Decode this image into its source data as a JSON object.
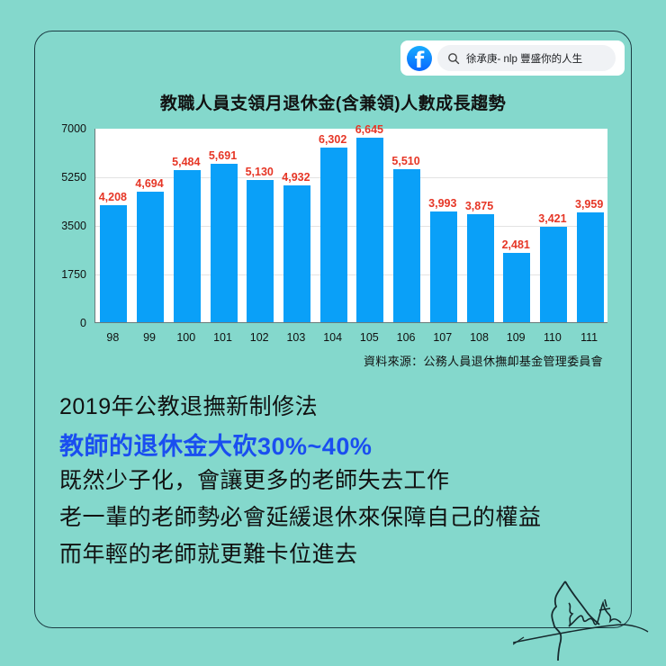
{
  "facebook_bar": {
    "logo_icon": "facebook-logo-icon",
    "search_icon": "search-icon",
    "page_name": "徐承庚- nlp 豐盛你的人生"
  },
  "chart_data": {
    "type": "bar",
    "title": "教職人員支領月退休金(含兼領)人數成長趨勢",
    "xlabel": "",
    "ylabel": "",
    "categories": [
      "98",
      "99",
      "100",
      "101",
      "102",
      "103",
      "104",
      "105",
      "106",
      "107",
      "108",
      "109",
      "110",
      "111"
    ],
    "values": [
      4208,
      4694,
      5484,
      5691,
      5130,
      4932,
      6302,
      6645,
      5510,
      3993,
      3875,
      2481,
      3421,
      3959
    ],
    "value_labels": [
      "4,208",
      "4,694",
      "5,484",
      "5,691",
      "5,130",
      "4,932",
      "6,302",
      "6,645",
      "5,510",
      "3,993",
      "3,875",
      "2,481",
      "3,421",
      "3,959"
    ],
    "ylim": [
      0,
      7000
    ],
    "yticks": [
      "7000",
      "5250",
      "3500",
      "1750",
      "0"
    ],
    "grid": true,
    "legend": null,
    "bar_color": "#0aa0f8",
    "label_color": "#e63626",
    "source": "資料來源：公務人員退休撫卹基金管理委員會"
  },
  "text_block": {
    "line1": "2019年公教退撫新制修法",
    "line2_highlight": "教師的退休金大砍30%~40%",
    "line3": "既然少子化，會讓更多的老師失去工作",
    "line4": "老一輩的老師勢必會延緩退休來保障自己的權益",
    "line5": "而年輕的老師就更難卡位進去"
  },
  "colors": {
    "background": "#84d8cc",
    "frame_border": "#1c3d44",
    "highlight_text": "#1a4ef0"
  }
}
